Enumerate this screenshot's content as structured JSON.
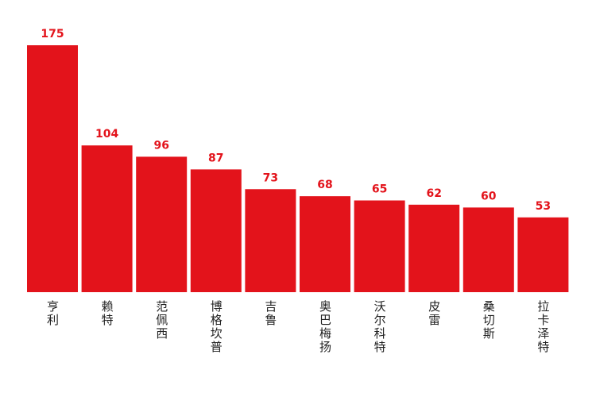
{
  "chart_data": {
    "type": "bar",
    "categories": [
      "亨利",
      "赖特",
      "范佩西",
      "博格坎普",
      "吉鲁",
      "奥巴梅扬",
      "沃尔科特",
      "皮雷",
      "桑切斯",
      "拉卡泽特"
    ],
    "values": [
      175,
      104,
      96,
      87,
      73,
      68,
      65,
      62,
      60,
      53
    ],
    "color": "#e3131b"
  }
}
